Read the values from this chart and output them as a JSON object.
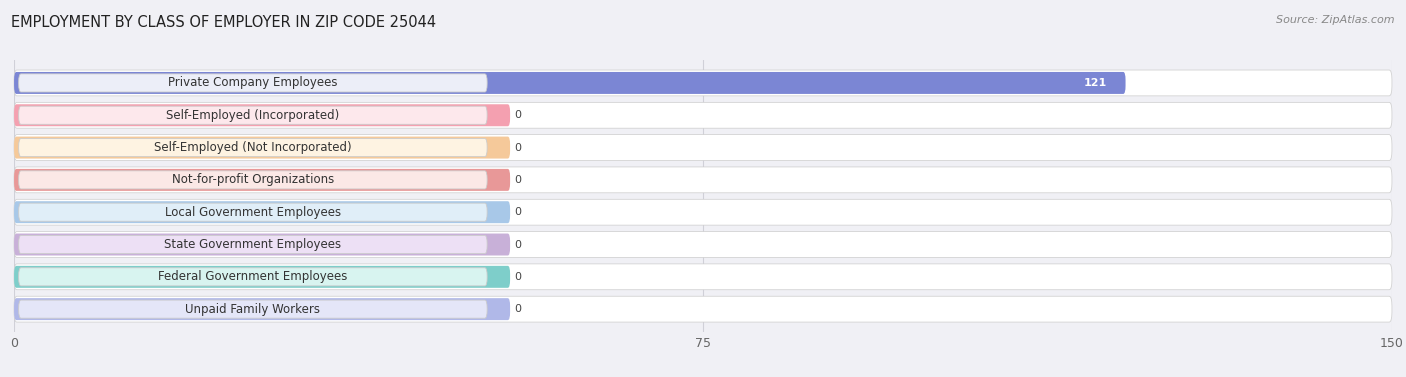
{
  "title": "EMPLOYMENT BY CLASS OF EMPLOYER IN ZIP CODE 25044",
  "source": "Source: ZipAtlas.com",
  "categories": [
    "Private Company Employees",
    "Self-Employed (Incorporated)",
    "Self-Employed (Not Incorporated)",
    "Not-for-profit Organizations",
    "Local Government Employees",
    "State Government Employees",
    "Federal Government Employees",
    "Unpaid Family Workers"
  ],
  "values": [
    121,
    0,
    0,
    0,
    0,
    0,
    0,
    0
  ],
  "bar_colors": [
    "#7b86d4",
    "#f4a0b0",
    "#f5c99a",
    "#e89898",
    "#a8c8e8",
    "#c8b0d8",
    "#7ececa",
    "#b0b8e8"
  ],
  "label_bg_colors": [
    "#eceef8",
    "#fde8ec",
    "#fef3e2",
    "#fbe8e6",
    "#e0eef8",
    "#ede0f5",
    "#d8f4f0",
    "#e4e6f8"
  ],
  "xlim": [
    0,
    150
  ],
  "xticks": [
    0,
    75,
    150
  ],
  "background_color": "#f0f0f5",
  "bar_background_color": "#ffffff",
  "grid_color": "#d0d0d8",
  "title_fontsize": 10.5,
  "source_fontsize": 8,
  "label_fontsize": 8.5,
  "value_fontsize": 8
}
